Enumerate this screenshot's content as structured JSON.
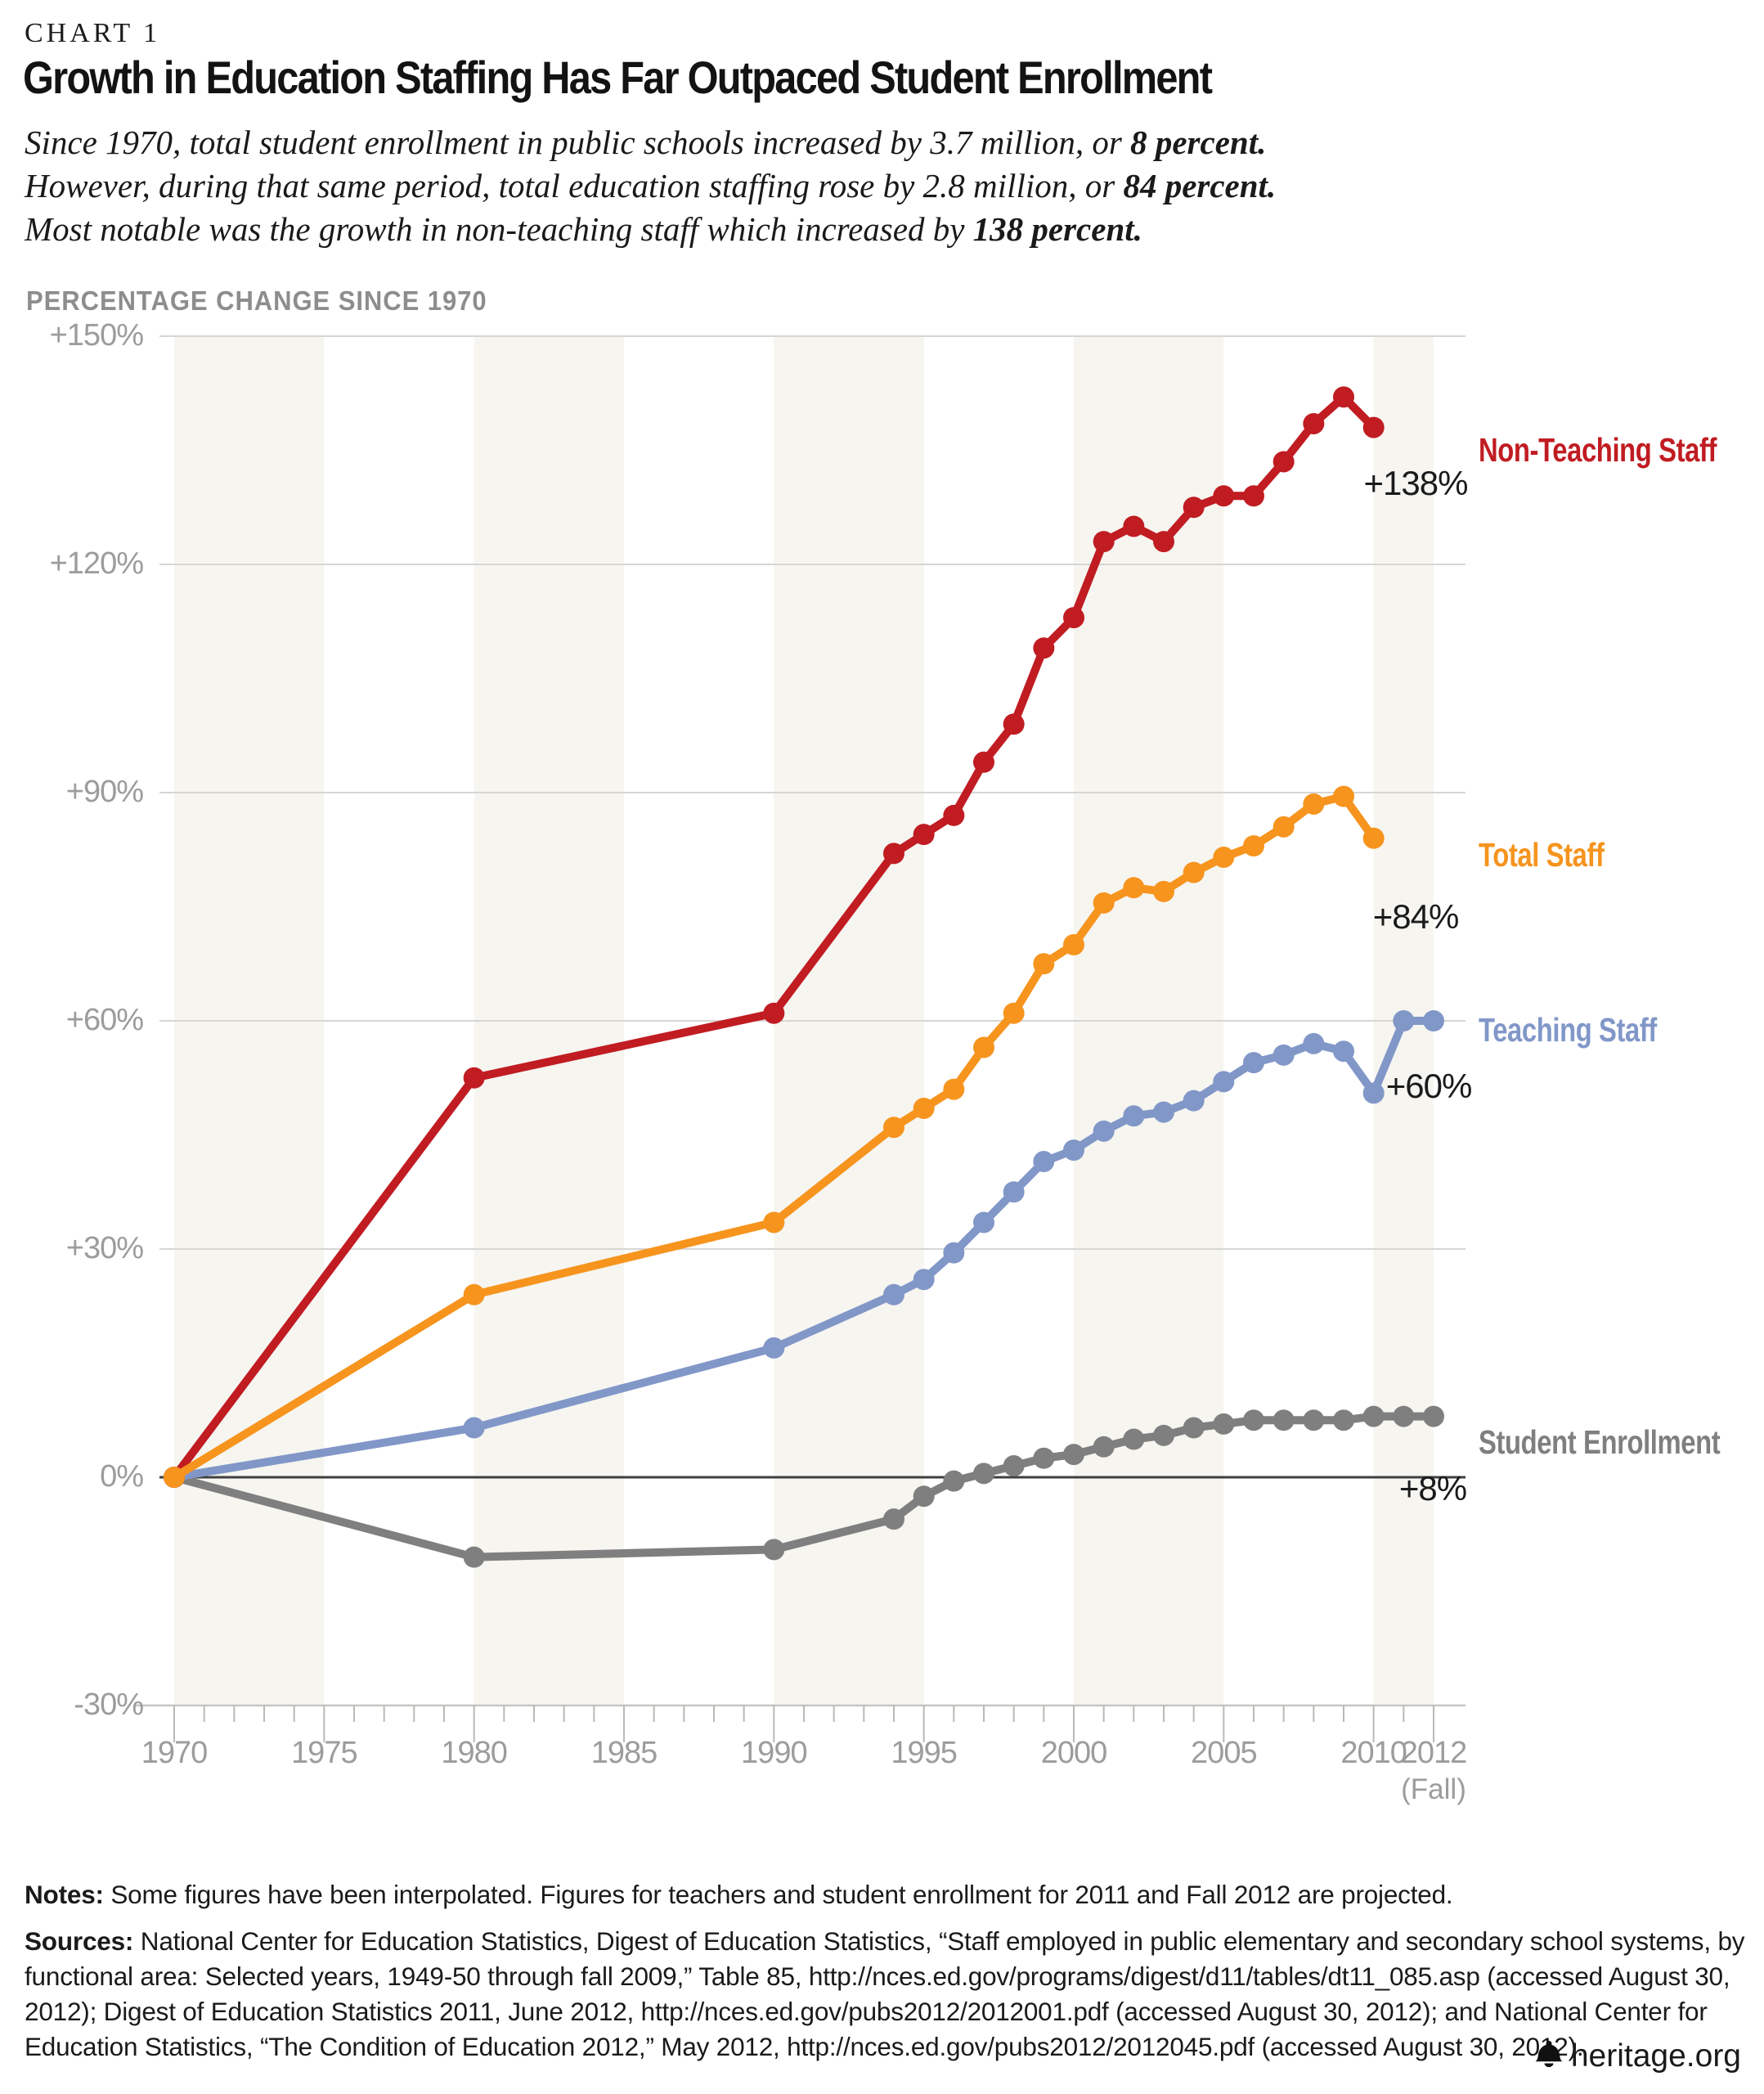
{
  "page": {
    "chart_label": "CHART 1",
    "title": "Growth in Education Staffing Has Far Outpaced Student Enrollment"
  },
  "subtitle": {
    "lines": [
      {
        "segments": [
          {
            "text": "Since 1970, total student enrollment in public schools increased by 3.7 million, or ",
            "bold": false
          },
          {
            "text": "8 percent.",
            "bold": true
          }
        ]
      },
      {
        "segments": [
          {
            "text": "However, during that same period, total education staffing rose by 2.8 million, or ",
            "bold": false
          },
          {
            "text": "84 percent.",
            "bold": true
          }
        ]
      },
      {
        "segments": [
          {
            "text": "Most notable was the growth in non-teaching staff which increased by ",
            "bold": false
          },
          {
            "text": "138 percent.",
            "bold": true
          }
        ]
      }
    ]
  },
  "chart_data": {
    "type": "line",
    "title": "Growth in Education Staffing Has Far Outpaced Student Enrollment",
    "axis_label": "PERCENTAGE CHANGE SINCE 1970",
    "xlabel": "",
    "ylabel": "Percentage change since 1970",
    "xlim": [
      1970,
      2012
    ],
    "ylim": [
      -30,
      150
    ],
    "grid": "horizontal",
    "legend_position": "right-of-line-ends",
    "y_ticks": [
      {
        "value": 150,
        "label": "+150%"
      },
      {
        "value": 120,
        "label": "+120%"
      },
      {
        "value": 90,
        "label": "+90%"
      },
      {
        "value": 60,
        "label": "+60%"
      },
      {
        "value": 30,
        "label": "+30%"
      },
      {
        "value": 0,
        "label": "0%"
      },
      {
        "value": -30,
        "label": "-30%"
      }
    ],
    "x_ticks_labeled": [
      {
        "value": 1970,
        "label": "1970"
      },
      {
        "value": 1975,
        "label": "1975"
      },
      {
        "value": 1980,
        "label": "1980"
      },
      {
        "value": 1985,
        "label": "1985"
      },
      {
        "value": 1990,
        "label": "1990"
      },
      {
        "value": 1995,
        "label": "1995"
      },
      {
        "value": 2000,
        "label": "2000"
      },
      {
        "value": 2005,
        "label": "2005"
      },
      {
        "value": 2010,
        "label": "2010"
      },
      {
        "value": 2012,
        "label": "2012",
        "sublabel": "(Fall)"
      }
    ],
    "shaded_bands": [
      [
        1970,
        1975
      ],
      [
        1980,
        1985
      ],
      [
        1990,
        1995
      ],
      [
        2000,
        2005
      ],
      [
        2010,
        2012
      ]
    ],
    "series": [
      {
        "id": "enrollment",
        "name": "Student Enrollment",
        "color": "#7f7f7f",
        "end_annotation": "+8%",
        "x": [
          1970,
          1980,
          1990,
          1994,
          1995,
          1996,
          1997,
          1998,
          1999,
          2000,
          2001,
          2002,
          2003,
          2004,
          2005,
          2006,
          2007,
          2008,
          2009,
          2010,
          2011,
          2012
        ],
        "y": [
          0,
          -10.5,
          -9.5,
          -5.5,
          -2.5,
          -0.5,
          0.5,
          1.5,
          2.5,
          3,
          4,
          5,
          5.5,
          6.5,
          7,
          7.5,
          7.5,
          7.5,
          7.5,
          8,
          8,
          8
        ]
      },
      {
        "id": "teaching",
        "name": "Teaching Staff",
        "color": "#8197c8",
        "end_annotation": "+60%",
        "x": [
          1970,
          1980,
          1990,
          1994,
          1995,
          1996,
          1997,
          1998,
          1999,
          2000,
          2001,
          2002,
          2003,
          2004,
          2005,
          2006,
          2007,
          2008,
          2009,
          2010,
          2011,
          2012
        ],
        "y": [
          0,
          6.5,
          17,
          24,
          26,
          29.5,
          33.5,
          37.5,
          41.5,
          43,
          45.5,
          47.5,
          48,
          49.5,
          52,
          54.5,
          55.5,
          57,
          56,
          50.5,
          60,
          60
        ]
      },
      {
        "id": "non_teaching",
        "name": "Non-Teaching Staff",
        "color": "#c01c22",
        "end_annotation": "+138%",
        "x": [
          1970,
          1980,
          1990,
          1994,
          1995,
          1996,
          1997,
          1998,
          1999,
          2000,
          2001,
          2002,
          2003,
          2004,
          2005,
          2006,
          2007,
          2008,
          2009,
          2010
        ],
        "y": [
          0,
          52.5,
          61,
          82,
          84.5,
          87,
          94,
          99,
          109,
          113,
          123,
          125,
          123,
          127.5,
          129,
          129,
          133.5,
          138.5,
          142,
          138
        ]
      },
      {
        "id": "total",
        "name": "Total Staff",
        "color": "#f6941e",
        "end_annotation": "+84%",
        "x": [
          1970,
          1980,
          1990,
          1994,
          1995,
          1996,
          1997,
          1998,
          1999,
          2000,
          2001,
          2002,
          2003,
          2004,
          2005,
          2006,
          2007,
          2008,
          2009,
          2010
        ],
        "y": [
          0,
          24,
          33.5,
          46,
          48.5,
          51,
          56.5,
          61,
          67.5,
          70,
          75.5,
          77.5,
          77,
          79.5,
          81.5,
          83,
          85.5,
          88.5,
          89.5,
          84
        ]
      }
    ]
  },
  "notes": {
    "label": "Notes:",
    "text": "Some figures have been interpolated. Figures for teachers and student enrollment for 2011 and Fall 2012 are projected."
  },
  "sources": {
    "label": "Sources:",
    "text": "National Center for Education Statistics, Digest of Education Statistics, “Staff employed in public elementary and secondary school systems, by functional area: Selected years, 1949-50 through fall 2009,” Table 85, http://nces.ed.gov/programs/digest/d11/tables/dt11_085.asp (accessed August 30, 2012); Digest of Education Statistics 2011, June 2012, http://nces.ed.gov/pubs2012/2012001.pdf (accessed August 30, 2012); and National Center for Education Statistics, “The Condition of Education 2012,” May 2012, http://nces.ed.gov/pubs2012/2012045.pdf (accessed August 30, 2012)."
  },
  "footer": {
    "brand": "heritage.org"
  }
}
